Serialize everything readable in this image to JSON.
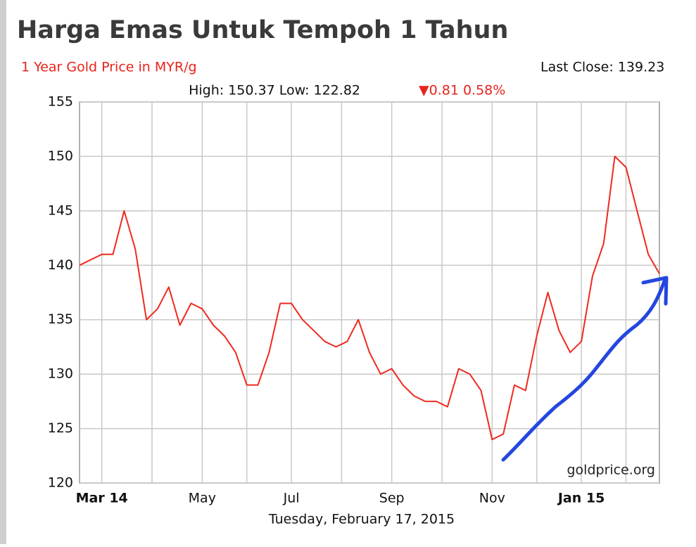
{
  "chart_data": {
    "type": "line",
    "title": "Harga Emas Untuk Tempoh 1 Tahun",
    "subtitle": "1 Year Gold Price in MYR/g",
    "last_close": "Last Close: 139.23",
    "high_low": "High: 150.37 Low: 122.82",
    "change": "▼0.81 0.58%",
    "source": "goldprice.org",
    "date": "Tuesday, February 17, 2015",
    "categories": [
      null,
      null,
      "Mar 14",
      null,
      null,
      null,
      null,
      null,
      null,
      null,
      null,
      "May",
      null,
      null,
      null,
      null,
      null,
      null,
      null,
      "Jul",
      null,
      null,
      null,
      null,
      null,
      null,
      null,
      null,
      "Sep",
      null,
      null,
      null,
      null,
      null,
      null,
      null,
      null,
      "Nov",
      null,
      null,
      null,
      null,
      null,
      null,
      null,
      "Jan 15",
      null,
      null,
      null,
      null,
      null,
      null,
      null
    ],
    "series": [
      {
        "name": "Gold Price",
        "color": "#ee2a1e",
        "values": [
          140,
          140.5,
          141,
          141,
          145,
          141.5,
          135,
          136,
          138,
          134.5,
          136.5,
          136,
          134.5,
          133.5,
          132,
          129,
          129,
          132,
          136.5,
          136.5,
          135,
          134,
          133,
          132.5,
          133,
          135,
          132,
          130,
          130.5,
          129,
          128,
          127.5,
          127.5,
          127,
          130.5,
          130,
          128.5,
          124,
          124.5,
          129,
          128.5,
          133.5,
          137.5,
          134,
          132,
          133,
          139,
          142,
          150,
          149,
          145,
          141,
          139.23
        ]
      }
    ],
    "ylim": [
      120,
      155
    ],
    "yticks": [
      120,
      125,
      130,
      135,
      140,
      145,
      150,
      155
    ],
    "grid": true
  }
}
